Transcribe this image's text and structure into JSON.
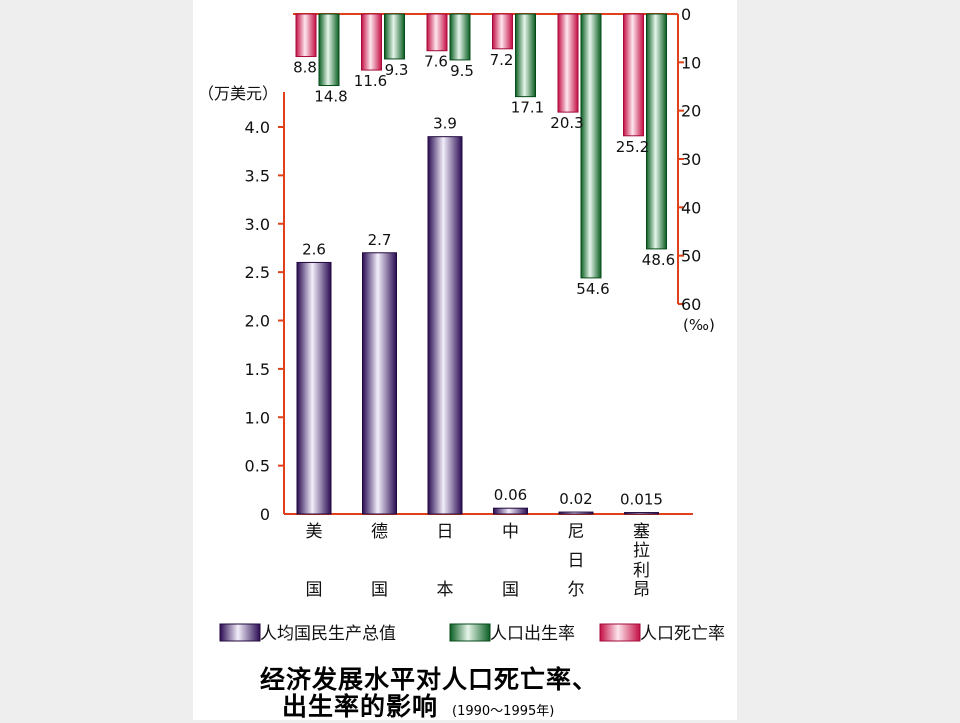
{
  "caption": {
    "title_line1": "经济发展水平对人口死亡率、",
    "title_line2": "出生率的影响",
    "years": "(1990～1995年)"
  },
  "colors": {
    "gnp": "#3a1670",
    "birth": "#0d7a2e",
    "death": "#d8154e",
    "axis": "#e0401a"
  },
  "chart_data": {
    "type": "bar",
    "categories": [
      "美国",
      "德国",
      "日本",
      "中国",
      "尼日尔",
      "塞拉利昂"
    ],
    "category_labels": [
      [
        "美",
        "国"
      ],
      [
        "德",
        "国"
      ],
      [
        "日",
        "本"
      ],
      [
        "中",
        "国"
      ],
      [
        "尼",
        "日",
        "尔"
      ],
      [
        "塞",
        "拉",
        "利",
        "昂"
      ]
    ],
    "left_axis": {
      "unit": "（万美元）",
      "ylim": [
        0,
        4.0
      ],
      "ticks": [
        "0",
        "0.5",
        "1.0",
        "1.5",
        "2.0",
        "2.5",
        "3.0",
        "3.5",
        "4.0"
      ]
    },
    "right_axis": {
      "unit": "(‰)",
      "ylim": [
        0,
        60
      ],
      "inverted": true,
      "ticks": [
        "0",
        "10",
        "20",
        "30",
        "40",
        "50",
        "60"
      ]
    },
    "series": [
      {
        "name": "人均国民生产总值",
        "axis": "left",
        "values": [
          2.6,
          2.7,
          3.9,
          0.06,
          0.02,
          0.015
        ],
        "labels": [
          "2.6",
          "2.7",
          "3.9",
          "0.06",
          "0.02",
          "0.015"
        ]
      },
      {
        "name": "人口出生率",
        "axis": "right",
        "values": [
          14.8,
          9.3,
          9.5,
          17.1,
          54.6,
          48.6
        ],
        "labels": [
          "14.8",
          "9.3",
          "9.5",
          "17.1",
          "54.6",
          "48.6"
        ]
      },
      {
        "name": "人口死亡率",
        "axis": "right",
        "values": [
          8.8,
          11.6,
          7.6,
          7.2,
          20.3,
          25.2
        ],
        "labels": [
          "8.8",
          "11.6",
          "7.6",
          "7.2",
          "20.3",
          "25.2"
        ]
      }
    ],
    "legend": [
      "人均国民生产总值",
      "人口出生率",
      "人口死亡率"
    ],
    "legend_position": "bottom"
  }
}
